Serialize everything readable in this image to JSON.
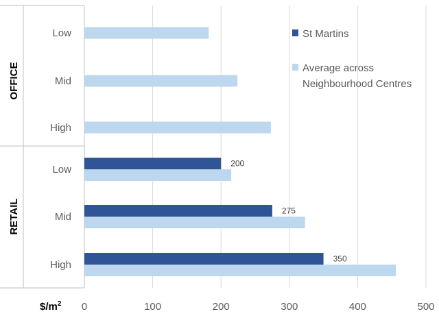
{
  "chart_data": {
    "type": "bar",
    "orientation": "horizontal",
    "xlim": [
      0,
      500
    ],
    "xticks": [
      "0",
      "100",
      "200",
      "300",
      "400",
      "500"
    ],
    "unit_label": "$/m",
    "unit_superscript": "2",
    "grid": true,
    "legend_position": "right",
    "groups": [
      {
        "name": "OFFICE",
        "categories": [
          "Low",
          "Mid",
          "High"
        ]
      },
      {
        "name": "RETAIL",
        "categories": [
          "Low",
          "Mid",
          "High"
        ]
      }
    ],
    "series": [
      {
        "name": "St Martins",
        "color": "#2F5597",
        "values": [
          null,
          null,
          null,
          200,
          275,
          350
        ],
        "data_labels": [
          "",
          "",
          "",
          "200",
          "275",
          "350"
        ]
      },
      {
        "name": "Average across Neighbourhood Centres",
        "name_lines": [
          "Average across",
          "Neighbourhood Centres"
        ],
        "color": "#BDD7EE",
        "values": [
          182,
          224,
          273,
          215,
          323,
          456
        ]
      }
    ]
  }
}
